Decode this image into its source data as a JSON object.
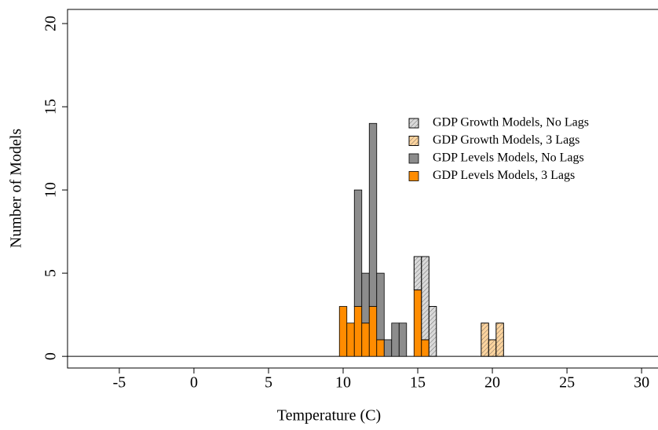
{
  "chart_data": {
    "type": "histogram",
    "x_label": "Temperature (C)",
    "y_label": "Number of Models",
    "bins": [
      9.75,
      10.25,
      10.75,
      11.25,
      11.75,
      12.25,
      12.75,
      13.25,
      13.75,
      14.25,
      14.75,
      15.25,
      15.75,
      16.25,
      16.75,
      17.25,
      17.75,
      18.25,
      18.75,
      19.25,
      19.75,
      20.25,
      20.75
    ],
    "series": [
      {
        "name": "GDP Growth Models, No Lags",
        "color": "#d9d9d9",
        "hatch": true,
        "values": [
          0,
          0,
          0,
          0,
          0,
          0,
          0,
          0,
          0,
          0,
          2,
          5,
          3,
          0,
          0,
          0,
          0,
          0,
          0,
          0,
          0,
          0
        ]
      },
      {
        "name": "GDP Growth Models, 3 Lags",
        "color": "#fdd49e",
        "hatch": true,
        "values": [
          0,
          0,
          0,
          0,
          0,
          0,
          0,
          0,
          0,
          0,
          0,
          0,
          0,
          0,
          0,
          0,
          0,
          0,
          0,
          2,
          1,
          2
        ]
      },
      {
        "name": "GDP Levels Models, No Lags",
        "color": "#8c8c8c",
        "hatch": false,
        "values": [
          0,
          0,
          7,
          3,
          11,
          4,
          1,
          2,
          2,
          0,
          0,
          0,
          0,
          0,
          0,
          0,
          0,
          0,
          0,
          0,
          0,
          0
        ]
      },
      {
        "name": "GDP Levels Models, 3 Lags",
        "color": "#ff8c00",
        "hatch": false,
        "values": [
          3,
          2,
          3,
          2,
          3,
          1,
          0,
          0,
          0,
          0,
          4,
          1,
          0,
          0,
          0,
          0,
          0,
          0,
          0,
          0,
          0,
          0
        ]
      }
    ],
    "xlim": [
      -8.47,
      31.1
    ],
    "ylim": [
      -0.7,
      20.85
    ],
    "xticks": [
      -5,
      0,
      5,
      10,
      15,
      20,
      25,
      30
    ],
    "yticks": [
      0,
      5,
      10,
      15,
      20
    ],
    "legend": "right"
  }
}
